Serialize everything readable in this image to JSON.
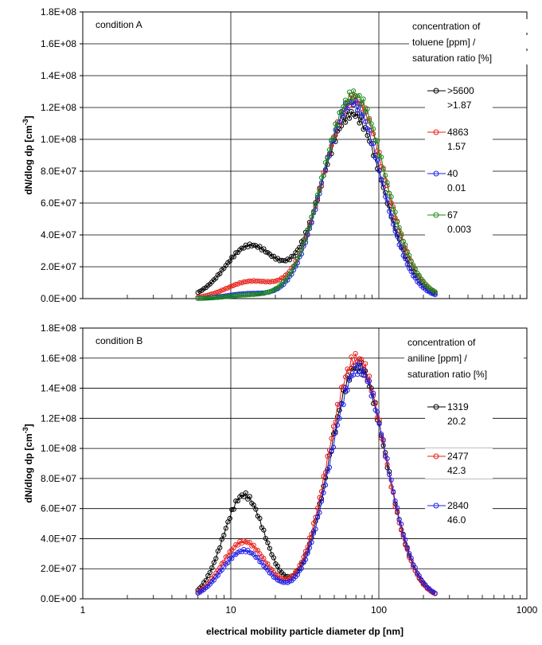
{
  "chart_data": [
    {
      "type": "line",
      "panel_label": "condition A",
      "xlabel": "electrical mobility particle diameter dp [nm]",
      "ylabel": "dN/dlog dp [cm",
      "ylabel_sup": "-3",
      "ylabel_end": "]",
      "xscale": "log",
      "xlim": [
        1,
        1000
      ],
      "ylim": [
        0,
        180000000
      ],
      "x_ticks": [
        "1",
        "10",
        "100",
        "1000"
      ],
      "y_ticks": [
        "0.0E+00",
        "2.0E+07",
        "4.0E+07",
        "6.0E+07",
        "8.0E+07",
        "1.0E+08",
        "1.2E+08",
        "1.4E+08",
        "1.6E+08",
        "1.8E+08"
      ],
      "grid": true,
      "legend_title": [
        "concentration of",
        "toluene [ppm] /",
        "saturation ratio [%]"
      ],
      "legend_placement": "right",
      "series": [
        {
          "name": ">5600",
          "name2": ">1.87",
          "color": "#000000",
          "peaks": [
            {
              "mu": 13.5,
              "sigma": 0.17,
              "amp": 33000000
            },
            {
              "mu": 66,
              "sigma": 0.21,
              "amp": 116000000
            }
          ]
        },
        {
          "name": "4863",
          "name2": "1.57",
          "color": "#e8201a",
          "peaks": [
            {
              "mu": 13.5,
              "sigma": 0.16,
              "amp": 10500000
            },
            {
              "mu": 68,
              "sigma": 0.21,
              "amp": 125000000
            }
          ]
        },
        {
          "name": "40",
          "name2": "0.01",
          "color": "#1f1fe8",
          "peaks": [
            {
              "mu": 13,
              "sigma": 0.14,
              "amp": 3000000
            },
            {
              "mu": 66,
              "sigma": 0.2,
              "amp": 123000000
            }
          ]
        },
        {
          "name": "67",
          "name2": "0.003",
          "color": "#1a8a1a",
          "peaks": [
            {
              "mu": 13,
              "sigma": 0.14,
              "amp": 2000000
            },
            {
              "mu": 68,
              "sigma": 0.21,
              "amp": 128000000
            }
          ]
        }
      ],
      "x_range": [
        6,
        240
      ]
    },
    {
      "type": "line",
      "panel_label": "condition B",
      "xlabel": "electrical mobility particle diameter dp [nm]",
      "ylabel": "dN/dlog dp [cm",
      "ylabel_sup": "-3",
      "ylabel_end": "]",
      "xscale": "log",
      "xlim": [
        1,
        1000
      ],
      "ylim": [
        0,
        180000000
      ],
      "x_ticks": [
        "1",
        "10",
        "100",
        "1000"
      ],
      "y_ticks": [
        "0.0E+00",
        "2.0E+07",
        "4.0E+07",
        "6.0E+07",
        "8.0E+07",
        "1.0E+08",
        "1.2E+08",
        "1.4E+08",
        "1.6E+08",
        "1.8E+08"
      ],
      "grid": true,
      "legend_title": [
        "concentration of",
        "aniline [ppm] /",
        "saturation ratio [%]"
      ],
      "legend_placement": "right",
      "series": [
        {
          "name": "1319",
          "name2": "20.2",
          "color": "#000000",
          "peaks": [
            {
              "mu": 12.3,
              "sigma": 0.14,
              "amp": 69000000
            },
            {
              "mu": 72,
              "sigma": 0.19,
              "amp": 155000000
            }
          ]
        },
        {
          "name": "2477",
          "name2": "42.3",
          "color": "#e8201a",
          "peaks": [
            {
              "mu": 12.3,
              "sigma": 0.15,
              "amp": 38000000
            },
            {
              "mu": 71,
              "sigma": 0.19,
              "amp": 160000000
            }
          ]
        },
        {
          "name": "2840",
          "name2": "46.0",
          "color": "#1f1fe8",
          "peaks": [
            {
              "mu": 12.3,
              "sigma": 0.15,
              "amp": 32000000
            },
            {
              "mu": 73,
              "sigma": 0.19,
              "amp": 153000000
            }
          ]
        }
      ],
      "x_range": [
        6,
        240
      ]
    }
  ]
}
